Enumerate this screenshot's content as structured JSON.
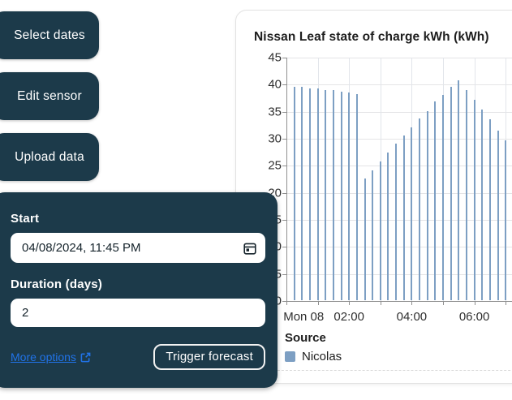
{
  "theme": {
    "accent_navy": "#1c3a4a",
    "link_blue": "#2173e8",
    "bar_blue": "#7d9fc3"
  },
  "sidebar": {
    "buttons": [
      {
        "label": "Select dates"
      },
      {
        "label": "Edit sensor"
      },
      {
        "label": "Upload data"
      }
    ]
  },
  "forecast_panel": {
    "start_label": "Start",
    "start_value": "04/08/2024, 11:45 PM",
    "duration_label": "Duration (days)",
    "duration_value": "2",
    "more_options_label": "More options",
    "trigger_button_label": "Trigger forecast"
  },
  "chart_data": {
    "type": "bar",
    "title": "Nissan Leaf state of charge kWh (kWh)",
    "x": [
      "00:15",
      "00:30",
      "00:45",
      "01:00",
      "01:15",
      "01:30",
      "01:45",
      "02:00",
      "02:15",
      "02:30",
      "02:45",
      "03:00",
      "03:15",
      "03:30",
      "03:45",
      "04:00",
      "04:15",
      "04:30",
      "04:45",
      "05:00",
      "05:15",
      "05:30",
      "05:45",
      "06:00",
      "06:15",
      "06:30",
      "06:45",
      "07:00",
      "07:15"
    ],
    "values": [
      39.5,
      39.4,
      39.2,
      39.1,
      38.9,
      38.8,
      38.6,
      38.4,
      38.1,
      22.5,
      24.0,
      25.7,
      27.3,
      28.9,
      30.5,
      32.0,
      33.6,
      35.0,
      36.7,
      38.0,
      39.5,
      40.6,
      38.9,
      37.0,
      35.2,
      33.4,
      31.4,
      29.5,
      27.7
    ],
    "unit": "kWh",
    "ylim": [
      0,
      45
    ],
    "y_tick_step": 5,
    "x_axis_labels": [
      {
        "label": "Mon 08",
        "hour": 0.55
      },
      {
        "label": "02:00",
        "hour": 2
      },
      {
        "label": "04:00",
        "hour": 4
      },
      {
        "label": "06:00",
        "hour": 6
      }
    ],
    "x_tick_hours": [
      0,
      1,
      2,
      3,
      4,
      5,
      6,
      7,
      8
    ],
    "grid": true,
    "legend": {
      "title": "Source",
      "entries": [
        {
          "label": "Nicolas",
          "color": "#7d9fc3"
        }
      ]
    }
  }
}
